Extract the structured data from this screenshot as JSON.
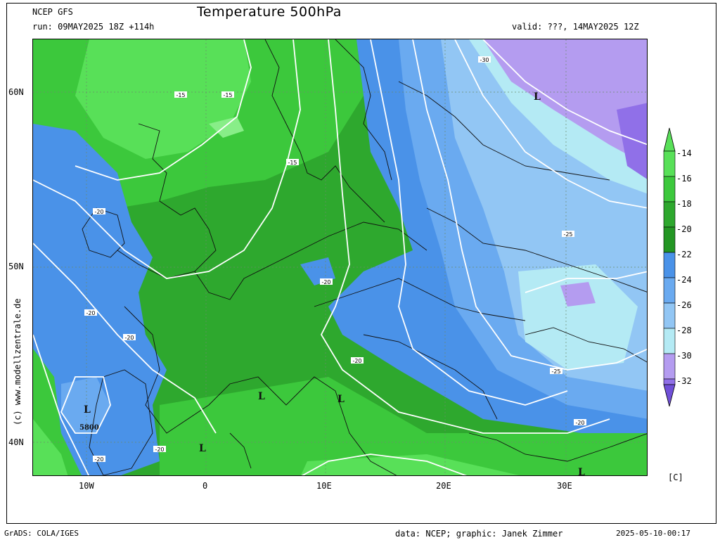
{
  "header": {
    "model": "NCEP GFS",
    "run": "run: 09MAY2025 18Z +114h",
    "title": "Temperature 500hPa",
    "valid": "valid: ???, 14MAY2025 12Z"
  },
  "axes": {
    "lat_ticks": [
      "60N",
      "50N",
      "40N"
    ],
    "lon_ticks": [
      "10W",
      "0",
      "10E",
      "20E",
      "30E"
    ]
  },
  "credit": "(c) www.modellzentrale.de",
  "legend": {
    "units": "[C]",
    "labels": [
      "-14",
      "-16",
      "-18",
      "-20",
      "-22",
      "-24",
      "-26",
      "-28",
      "-30",
      "-32"
    ],
    "colors": [
      "#58e058",
      "#3cc83c",
      "#2ea82e",
      "#239623",
      "#4a92e8",
      "#6aaaf0",
      "#92c6f4",
      "#b4eaf4",
      "#b49cf0",
      "#9070e8",
      "#7050d8"
    ]
  },
  "map_labels": {
    "contours": [
      "-15",
      "-15",
      "-15",
      "-20",
      "-20",
      "-20",
      "-20",
      "-20",
      "-20",
      "-20",
      "-20",
      "-25",
      "-25",
      "-30"
    ],
    "lows": [
      "L",
      "L",
      "L",
      "L",
      "L",
      "L"
    ],
    "height": "5800"
  },
  "footer": {
    "grads": "GrADS: COLA/IGES",
    "data": "data: NCEP; graphic: Janek Zimmer",
    "timestamp": "2025-05-10-00:17"
  }
}
